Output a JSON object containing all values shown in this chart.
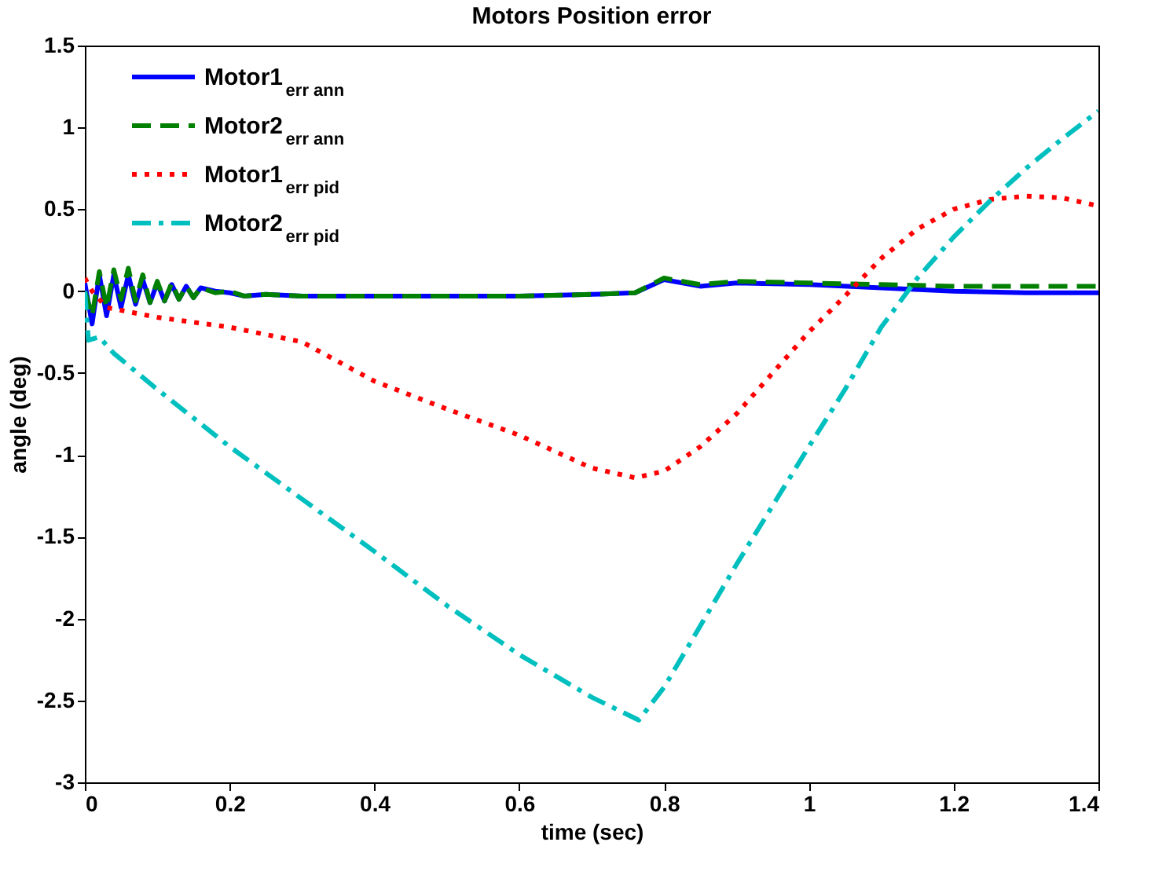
{
  "chart_data": {
    "type": "line",
    "title": "Motors Position error",
    "xlabel": "time (sec)",
    "ylabel": "angle (deg)",
    "xlim": [
      0,
      1.4
    ],
    "xticks": [
      0,
      0.2,
      0.4,
      0.6,
      0.8,
      1,
      1.2,
      1.4
    ],
    "ylim": [
      -3,
      1.5
    ],
    "yticks": [
      -3,
      -2.5,
      -2,
      -1.5,
      -1,
      -0.5,
      0,
      0.5,
      1,
      1.5
    ],
    "grid": false,
    "legend": "top left",
    "marker": "none",
    "series": [
      {
        "name": "Motor1$_{err ann}$",
        "color": "#0000ff",
        "line_style": "solid",
        "x": [
          0,
          0.01,
          0.02,
          0.03,
          0.04,
          0.05,
          0.06,
          0.07,
          0.08,
          0.09,
          0.1,
          0.11,
          0.12,
          0.13,
          0.14,
          0.15,
          0.16,
          0.18,
          0.2,
          0.22,
          0.25,
          0.3,
          0.4,
          0.5,
          0.6,
          0.7,
          0.76,
          0.8,
          0.85,
          0.9,
          1.0,
          1.1,
          1.2,
          1.3,
          1.4
        ],
        "values": [
          0.05,
          -0.2,
          0.1,
          -0.15,
          0.1,
          -0.1,
          0.1,
          -0.08,
          0.07,
          -0.07,
          0.05,
          -0.06,
          0.04,
          -0.05,
          0.03,
          -0.04,
          0.02,
          0.0,
          -0.01,
          -0.03,
          -0.02,
          -0.03,
          -0.03,
          -0.03,
          -0.03,
          -0.02,
          -0.01,
          0.07,
          0.03,
          0.05,
          0.04,
          0.02,
          0.0,
          -0.01,
          -0.01
        ]
      },
      {
        "name": "Motor2$_{err ann}$",
        "color": "#008000",
        "line_style": "dashed",
        "x": [
          0,
          0.01,
          0.02,
          0.03,
          0.04,
          0.05,
          0.06,
          0.07,
          0.08,
          0.09,
          0.1,
          0.11,
          0.12,
          0.13,
          0.14,
          0.15,
          0.16,
          0.18,
          0.2,
          0.22,
          0.25,
          0.3,
          0.4,
          0.5,
          0.6,
          0.7,
          0.76,
          0.8,
          0.85,
          0.9,
          1.0,
          1.1,
          1.2,
          1.3,
          1.4
        ],
        "values": [
          0.0,
          -0.15,
          0.12,
          -0.1,
          0.13,
          -0.05,
          0.14,
          -0.06,
          0.1,
          -0.07,
          0.06,
          -0.06,
          0.05,
          -0.05,
          0.03,
          -0.04,
          0.02,
          -0.01,
          0.0,
          -0.03,
          -0.02,
          -0.03,
          -0.03,
          -0.03,
          -0.03,
          -0.02,
          -0.01,
          0.08,
          0.04,
          0.06,
          0.05,
          0.04,
          0.03,
          0.03,
          0.03
        ]
      },
      {
        "name": "Motor1$_{err pid}$",
        "color": "#ff0000",
        "line_style": "dotted",
        "x": [
          0,
          0.01,
          0.03,
          0.1,
          0.2,
          0.3,
          0.4,
          0.5,
          0.6,
          0.7,
          0.76,
          0.8,
          0.85,
          0.9,
          0.95,
          1.0,
          1.05,
          1.1,
          1.15,
          1.2,
          1.25,
          1.3,
          1.35,
          1.4
        ],
        "values": [
          0.08,
          0.0,
          -0.1,
          -0.16,
          -0.22,
          -0.31,
          -0.55,
          -0.72,
          -0.88,
          -1.08,
          -1.14,
          -1.1,
          -0.95,
          -0.75,
          -0.5,
          -0.25,
          -0.03,
          0.2,
          0.38,
          0.5,
          0.56,
          0.58,
          0.57,
          0.52
        ]
      },
      {
        "name": "Motor2$_{err pid}$",
        "color": "#00bfbf",
        "line_style": "dashdot",
        "x": [
          0,
          0.005,
          0.02,
          0.04,
          0.1,
          0.2,
          0.3,
          0.4,
          0.5,
          0.6,
          0.7,
          0.765,
          0.8,
          0.9,
          1.0,
          1.05,
          1.1,
          1.15,
          1.2,
          1.25,
          1.3,
          1.35,
          1.4
        ],
        "values": [
          0.0,
          -0.3,
          -0.28,
          -0.38,
          -0.6,
          -0.95,
          -1.27,
          -1.59,
          -1.92,
          -2.22,
          -2.48,
          -2.62,
          -2.42,
          -1.67,
          -0.95,
          -0.6,
          -0.22,
          0.08,
          0.33,
          0.55,
          0.75,
          0.93,
          1.1
        ]
      }
    ]
  }
}
